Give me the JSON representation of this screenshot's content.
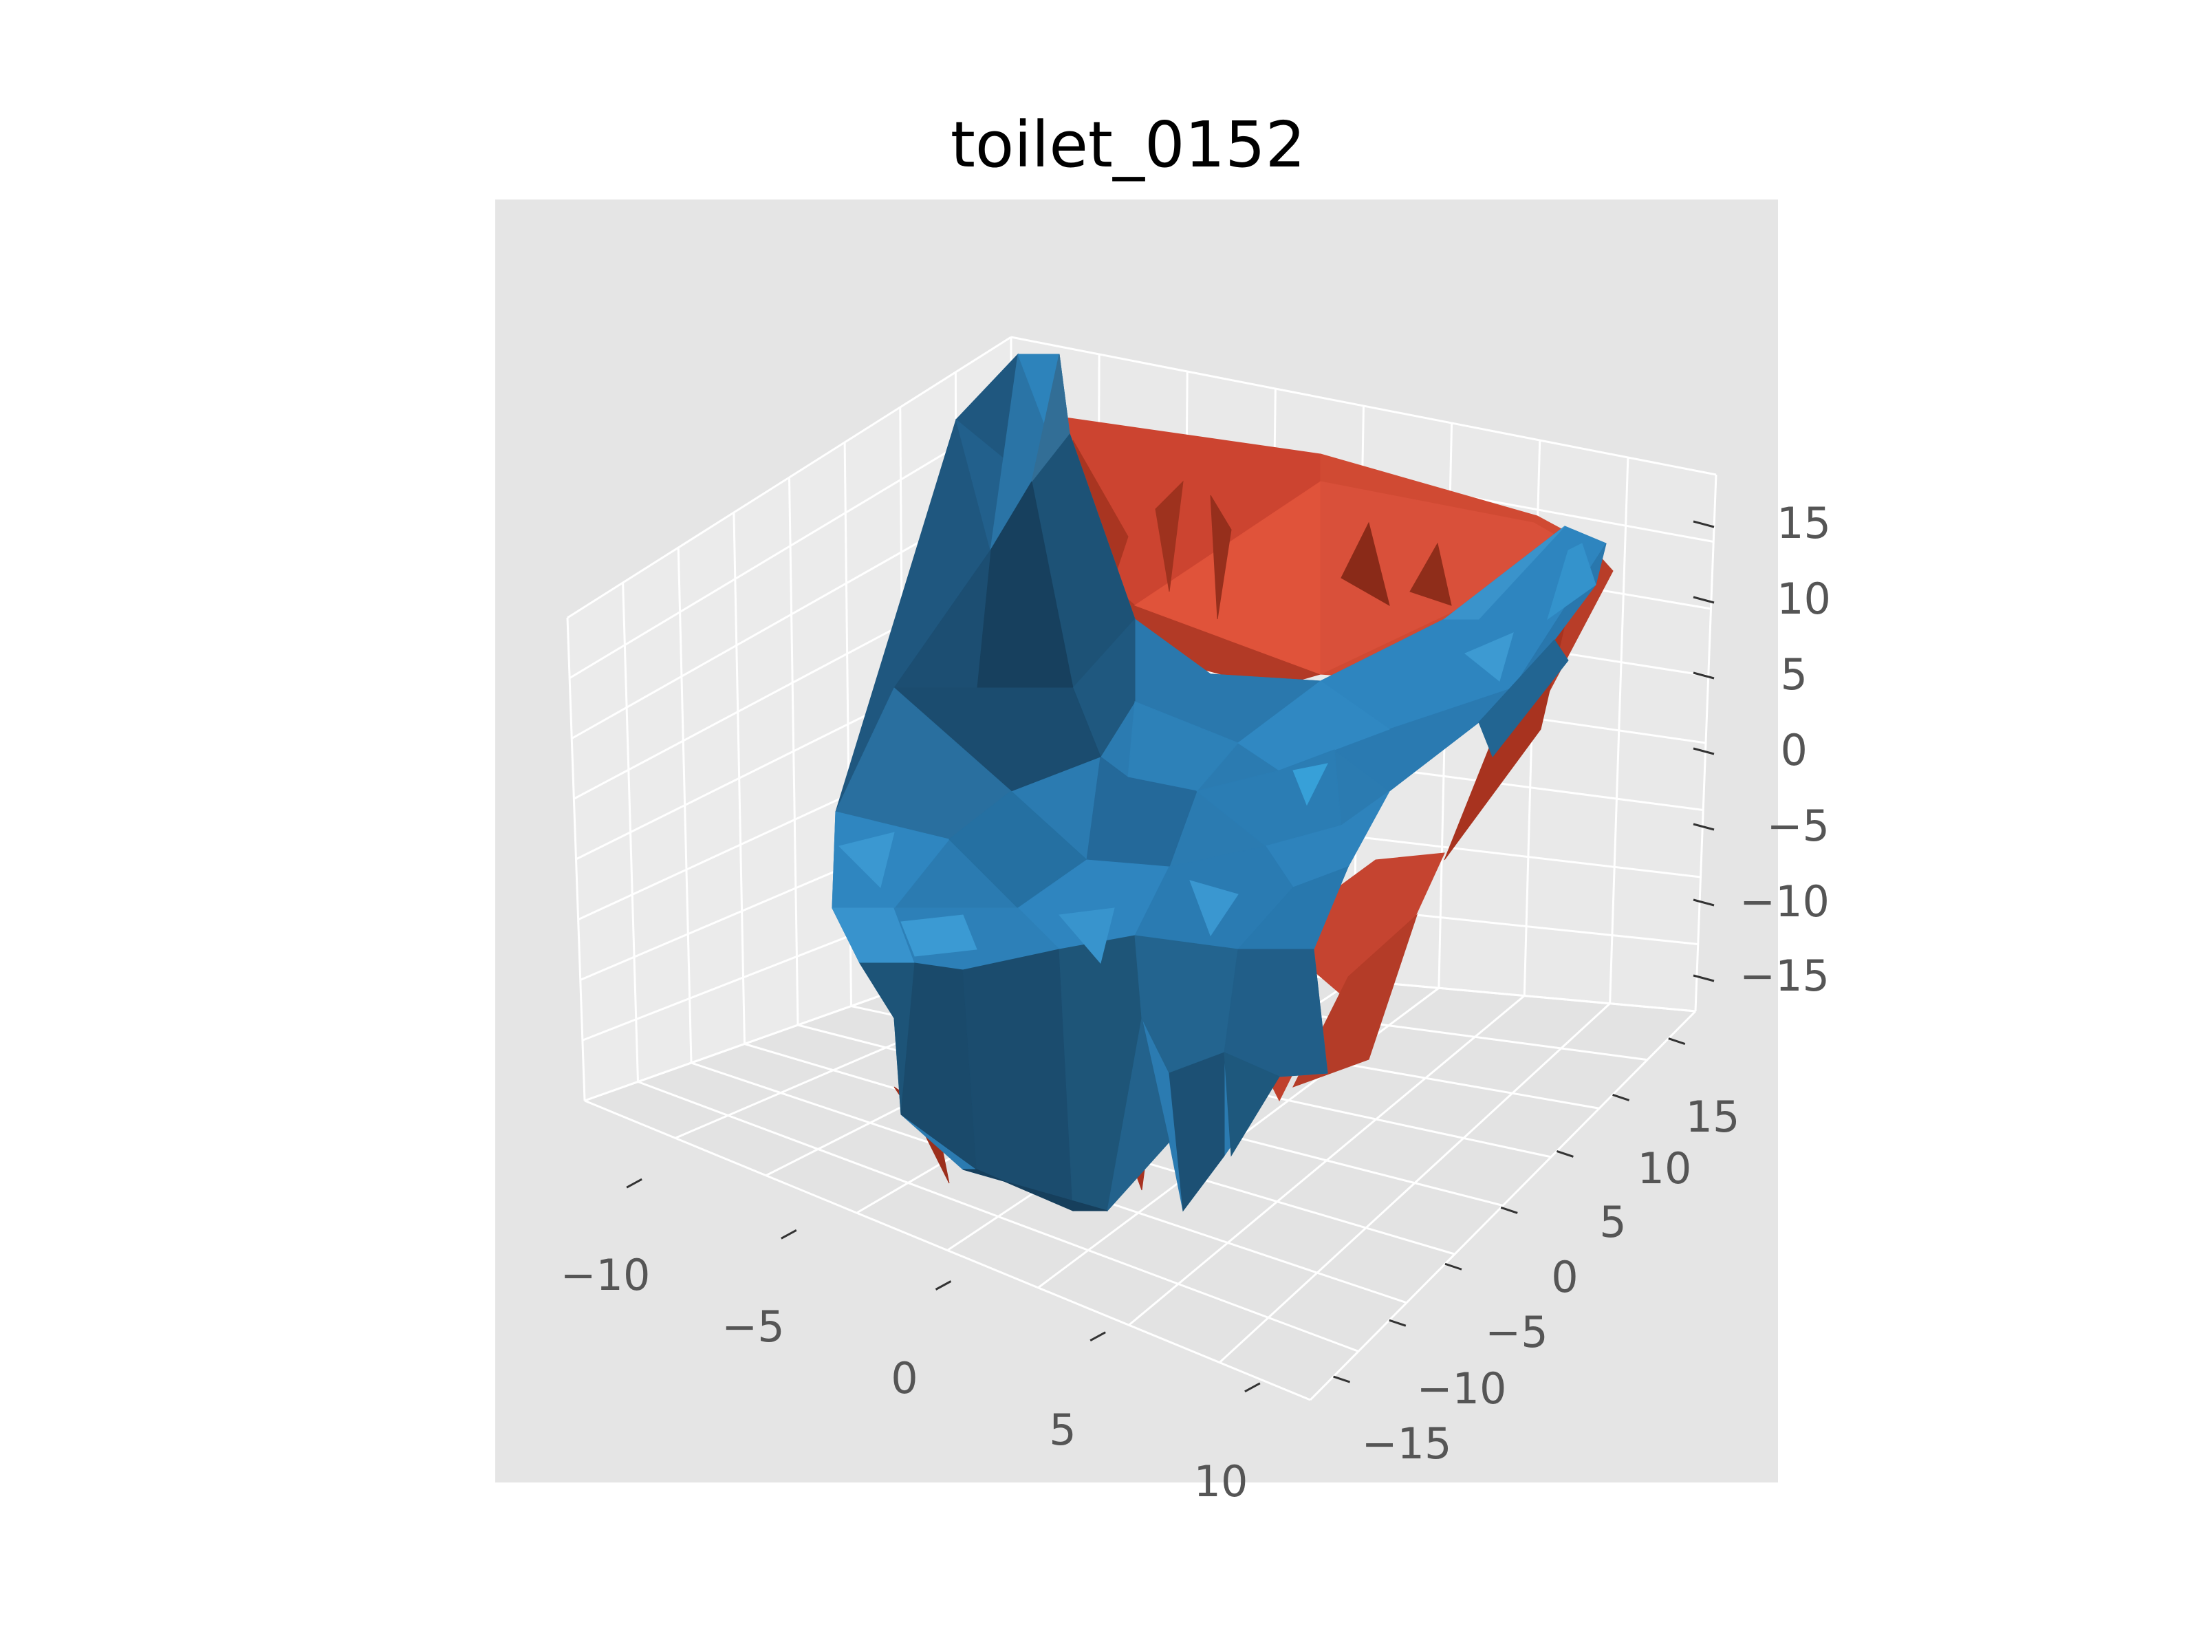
{
  "chart_data": {
    "type": "3d-surface",
    "title": "toilet_0152",
    "axes": {
      "x": {
        "ticks": [
          "−10",
          "−5",
          "0",
          "5",
          "10"
        ]
      },
      "y": {
        "ticks": [
          "−15",
          "−10",
          "−5",
          "0",
          "5",
          "10",
          "15"
        ]
      },
      "z": {
        "ticks": [
          "−15",
          "−10",
          "−5",
          "0",
          "5",
          "10",
          "15"
        ]
      }
    },
    "grid": true,
    "series": [
      {
        "color": "#d64a31",
        "description_role": "back/inner surface"
      },
      {
        "color": "#2e85bf",
        "description_role": "front/outer surface"
      }
    ],
    "colors": {
      "pane": "#e5e5e5",
      "pane_left": "#ebebeb",
      "pane_floor": "#e3e3e3",
      "grid": "#ffffff",
      "red_light": "#d64a31",
      "red_dark": "#8a2a18",
      "blue_light": "#2e85bf",
      "blue_dark": "#1b4560"
    }
  }
}
